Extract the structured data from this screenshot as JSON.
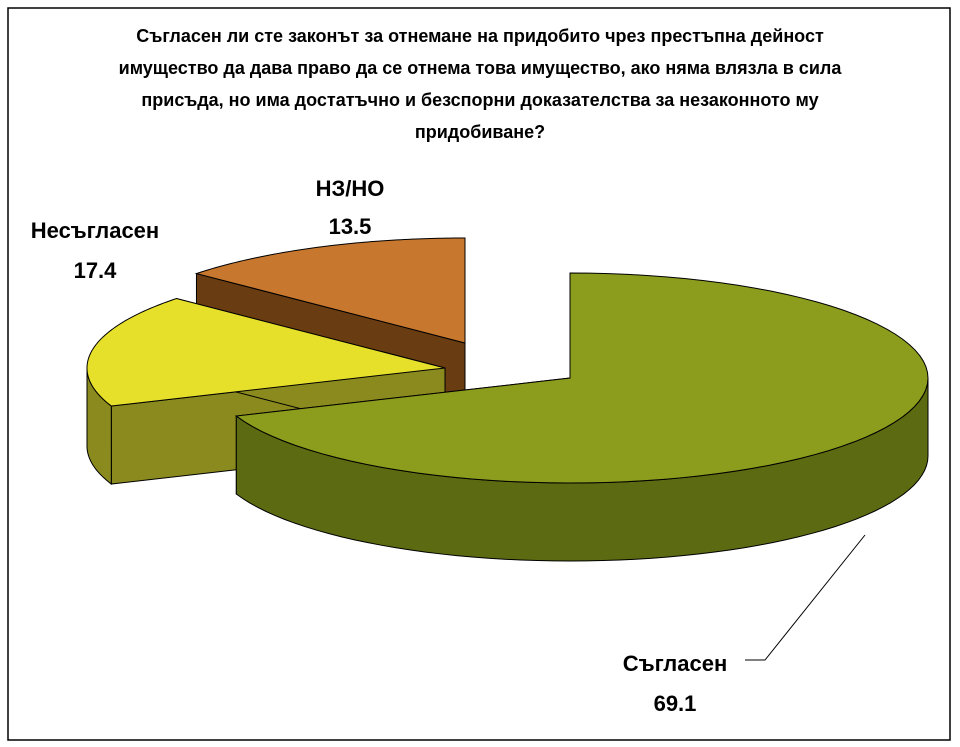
{
  "chart_data": {
    "type": "pie3d",
    "title": "Съгласен ли сте законът за отнемане на придобито чрез престъпна дейност имущество да дава право да се отнема това имущество, ако няма влязла в сила присъда, но има достатъчно и безспорни доказателства за незаконното му придобиване?",
    "categories": [
      "Съгласен",
      "Несъгласен",
      "НЗ/НО"
    ],
    "values": [
      69.1,
      17.4,
      13.5
    ],
    "colors": [
      "#8c9c1c",
      "#e6e02a",
      "#c8782e"
    ],
    "side_colors": [
      "#5c6a12",
      "#8a8a1e",
      "#6a3c12"
    ]
  }
}
